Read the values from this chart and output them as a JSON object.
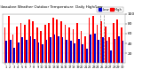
{
  "title": "Milwaukee Weather Outdoor Temperature  Daily High/Low",
  "highs": [
    72,
    95,
    58,
    75,
    82,
    78,
    88,
    85,
    72,
    65,
    78,
    82,
    92,
    88,
    85,
    78,
    72,
    68,
    82,
    65,
    55,
    92,
    95,
    78,
    85,
    75,
    52,
    82,
    88,
    72
  ],
  "lows": [
    45,
    48,
    32,
    42,
    52,
    48,
    55,
    50,
    42,
    38,
    48,
    52,
    58,
    55,
    52,
    48,
    45,
    40,
    50,
    38,
    30,
    58,
    60,
    48,
    52,
    45,
    25,
    50,
    55,
    45
  ],
  "high_color": "#ff0000",
  "low_color": "#0000cc",
  "bg_color": "#ffffff",
  "grid_color": "#d0d0d0",
  "ylim": [
    0,
    100
  ],
  "bar_width": 0.38,
  "dashed_lines": [
    23.5,
    24.5
  ],
  "legend_high_label": "High",
  "legend_low_label": "Low"
}
